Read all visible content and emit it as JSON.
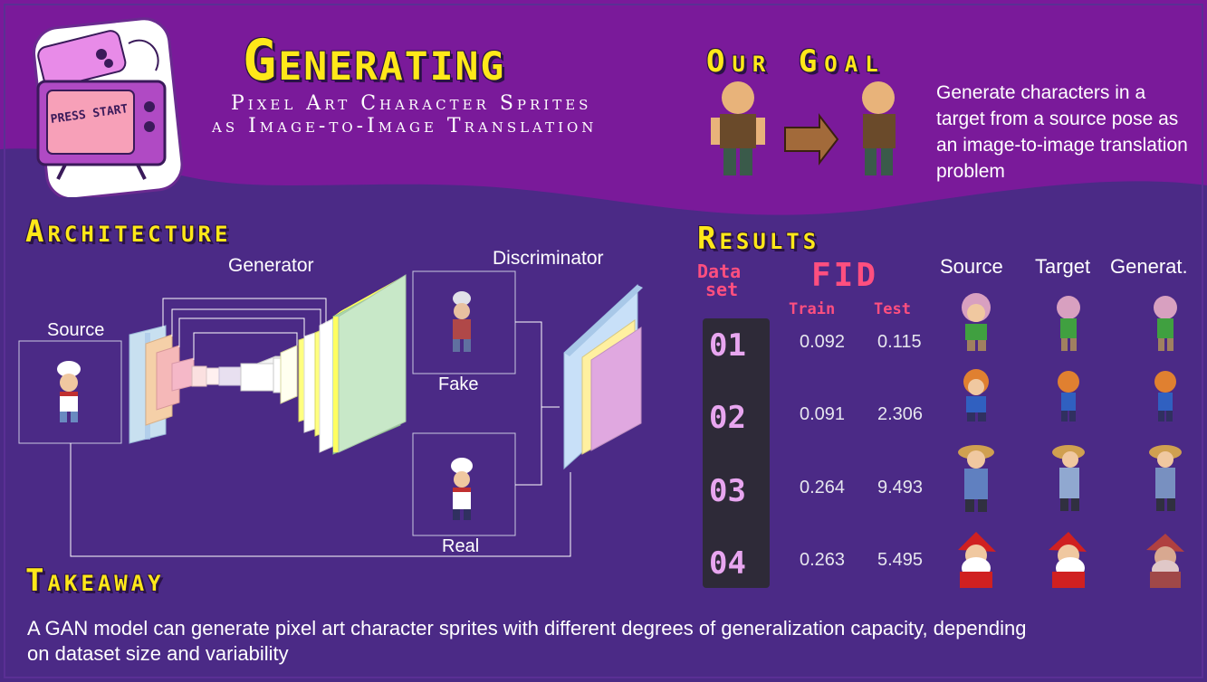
{
  "header": {
    "title": "Generating",
    "subtitle_line1": "Pixel Art Character Sprites",
    "subtitle_line2": "as Image-to-Image Translation",
    "logo": {
      "name": "retro-tv-press-start-logo",
      "text": "PRESS START"
    }
  },
  "goal": {
    "heading": "Our Goal",
    "description": "Generate characters in a target from a source pose as an image-to-image translation problem"
  },
  "architecture": {
    "heading": "Architecture",
    "generator_label": "Generator",
    "discriminator_label": "Discriminator",
    "source_label": "Source",
    "fake_label": "Fake",
    "real_label": "Real"
  },
  "results": {
    "heading": "Results",
    "dataset_label_line1": "Data",
    "dataset_label_line2": "set",
    "fid_label": "FID",
    "train_label": "Train",
    "test_label": "Test",
    "col_source": "Source",
    "col_target": "Target",
    "col_generated": "Generat.",
    "rows": [
      {
        "id": "01",
        "train": "0.092",
        "test": "0.115"
      },
      {
        "id": "02",
        "train": "0.091",
        "test": "2.306"
      },
      {
        "id": "03",
        "train": "0.264",
        "test": "9.493"
      },
      {
        "id": "04",
        "train": "0.263",
        "test": "5.495"
      }
    ]
  },
  "takeaway": {
    "heading": "Takeaway",
    "text_line1": "A GAN model can generate pixel art character sprites with different degrees of generalization capacity, depending",
    "text_line2": "on dataset size and variability"
  },
  "colors": {
    "background_top": "#7a1a9a",
    "background_bottom": "#4b2a86",
    "title_yellow": "#ffe819",
    "fid_pink": "#ff4f7f",
    "id_lilac": "#e8a6f0"
  }
}
